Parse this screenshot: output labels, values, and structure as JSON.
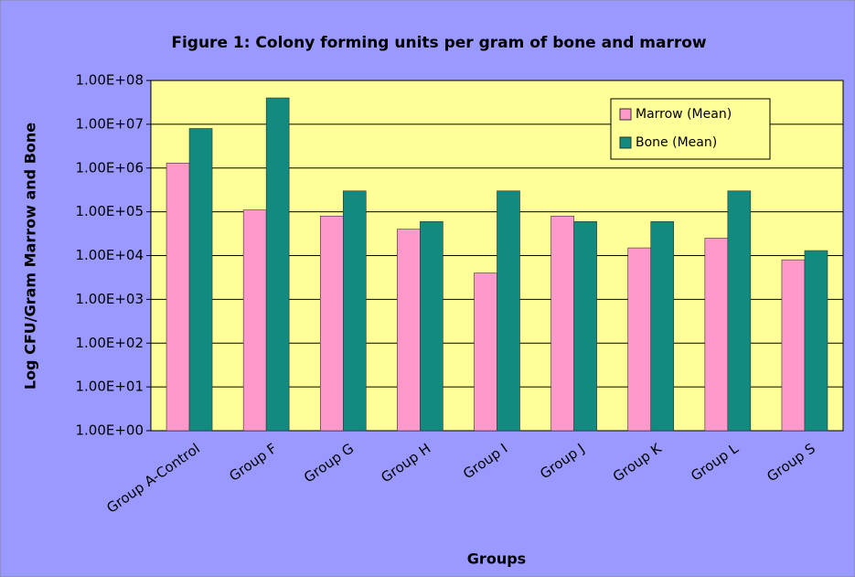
{
  "chart_data": {
    "type": "bar",
    "title": "Figure 1: Colony forming units per gram of bone and marrow",
    "x_label": "Groups",
    "y_label": "Log CFU/Gram Marrow and Bone",
    "categories": [
      "Group A-Control",
      "Group F",
      "Group G",
      "Group H",
      "Group I",
      "Group J",
      "Group K",
      "Group L",
      "Group S"
    ],
    "series": [
      {
        "name": "Marrow (Mean)",
        "color": "#ff99cc",
        "values": [
          1300000,
          110000,
          80000,
          40000,
          4000,
          80000,
          15000,
          25000,
          8000
        ]
      },
      {
        "name": "Bone (Mean)",
        "color": "#128a80",
        "values": [
          8000000,
          40000000,
          300000,
          60000,
          300000,
          60000,
          60000,
          300000,
          13000
        ]
      }
    ],
    "y_scale": "log",
    "ylim": [
      1,
      100000000
    ],
    "yticks": [
      {
        "value": 1,
        "label": "1.00E+00"
      },
      {
        "value": 10,
        "label": "1.00E+01"
      },
      {
        "value": 100,
        "label": "1.00E+02"
      },
      {
        "value": 1000,
        "label": "1.00E+03"
      },
      {
        "value": 10000,
        "label": "1.00E+04"
      },
      {
        "value": 100000,
        "label": "1.00E+05"
      },
      {
        "value": 1000000,
        "label": "1.00E+06"
      },
      {
        "value": 10000000,
        "label": "1.00E+07"
      },
      {
        "value": 100000000,
        "label": "1.00E+08"
      }
    ],
    "grid": true,
    "legend": "top-right"
  }
}
